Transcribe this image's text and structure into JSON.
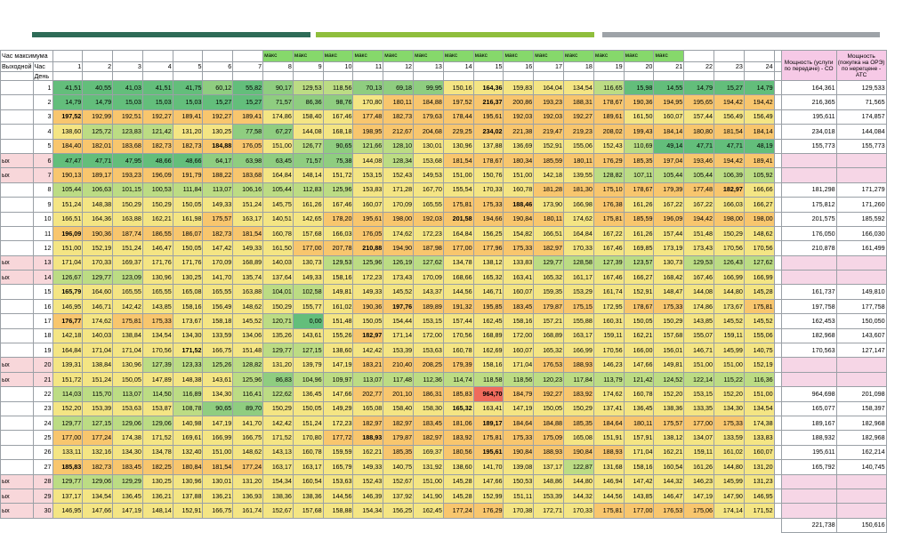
{
  "header": {
    "title": "Час максимума",
    "weekend_label": "Выходной",
    "hour_label": "Час",
    "day_label": "День",
    "maks_label": "макс",
    "maks_hours": [
      8,
      9,
      10,
      11,
      12,
      13,
      14,
      15,
      16,
      17,
      18,
      19,
      20,
      21
    ],
    "hours": [
      1,
      2,
      3,
      4,
      5,
      6,
      7,
      8,
      9,
      10,
      11,
      12,
      13,
      14,
      15,
      16,
      17,
      18,
      19,
      20,
      21,
      22,
      23,
      24
    ],
    "col_co": "Мощность (услуги по передаче) - СО",
    "col_ats": "Мощность (покупка на ОРЭ) по нерегцене - АТС"
  },
  "row_side_text": "ых",
  "rows": [
    {
      "day": "1",
      "wk": false,
      "v": [
        "41,51",
        "40,55",
        "41,03",
        "41,51",
        "41,75",
        "60,12",
        "55,82",
        "90,17",
        "129,53",
        "118,56",
        "70,13",
        "69,18",
        "99,95",
        "150,16",
        "164,36",
        "159,83",
        "164,04",
        "134,54",
        "116,65",
        "15,98",
        "14,55",
        "14,79",
        "15,27",
        "14,79"
      ],
      "co": "164,361",
      "ats": "129,533"
    },
    {
      "day": "2",
      "wk": false,
      "v": [
        "14,79",
        "14,79",
        "15,03",
        "15,03",
        "15,03",
        "15,27",
        "15,27",
        "71,57",
        "86,36",
        "98,76",
        "170,80",
        "180,11",
        "184,88",
        "197,52",
        "216,37",
        "200,86",
        "193,23",
        "188,31",
        "178,67",
        "190,36",
        "194,95",
        "195,65",
        "194,42",
        "194,42"
      ],
      "co": "216,365",
      "ats": "71,565"
    },
    {
      "day": "3",
      "wk": false,
      "v": [
        "197,52",
        "192,99",
        "192,51",
        "192,27",
        "189,41",
        "192,27",
        "189,41",
        "174,86",
        "158,40",
        "167,46",
        "177,48",
        "182,73",
        "179,63",
        "178,44",
        "195,61",
        "192,03",
        "192,03",
        "192,27",
        "189,61",
        "161,50",
        "160,07",
        "157,44",
        "156,49",
        "156,49"
      ],
      "co": "195,611",
      "ats": "174,857"
    },
    {
      "day": "4",
      "wk": false,
      "v": [
        "138,60",
        "125,72",
        "123,83",
        "121,42",
        "131,20",
        "130,25",
        "77,58",
        "67,27",
        "144,08",
        "168,18",
        "198,95",
        "212,67",
        "204,68",
        "229,25",
        "234,02",
        "221,38",
        "219,47",
        "219,23",
        "208,02",
        "199,43",
        "184,14",
        "180,80",
        "181,54",
        "184,14"
      ],
      "co": "234,018",
      "ats": "144,084"
    },
    {
      "day": "5",
      "wk": false,
      "v": [
        "184,40",
        "182,01",
        "183,68",
        "182,73",
        "182,73",
        "184,88",
        "176,05",
        "151,00",
        "126,77",
        "90,65",
        "121,66",
        "128,10",
        "130,01",
        "130,96",
        "137,88",
        "136,69",
        "152,91",
        "155,06",
        "152,43",
        "110,69",
        "49,14",
        "47,71",
        "47,71",
        "48,19"
      ],
      "co": "155,773",
      "ats": "155,773"
    },
    {
      "day": "6",
      "wk": true,
      "v": [
        "47,47",
        "47,71",
        "47,95",
        "48,66",
        "48,66",
        "64,17",
        "63,98",
        "63,45",
        "71,57",
        "75,38",
        "144,08",
        "128,34",
        "153,68",
        "181,54",
        "178,67",
        "180,34",
        "185,59",
        "180,11",
        "176,29",
        "185,35",
        "197,04",
        "193,46",
        "194,42",
        "189,41"
      ],
      "co": "",
      "ats": ""
    },
    {
      "day": "7",
      "wk": true,
      "v": [
        "190,13",
        "189,17",
        "193,23",
        "196,09",
        "191,79",
        "188,22",
        "183,68",
        "164,84",
        "148,14",
        "151,72",
        "153,15",
        "152,43",
        "149,53",
        "151,00",
        "150,76",
        "151,00",
        "142,18",
        "139,55",
        "128,82",
        "107,11",
        "105,44",
        "105,44",
        "106,39",
        "105,92"
      ],
      "co": "",
      "ats": ""
    },
    {
      "day": "8",
      "wk": false,
      "v": [
        "105,44",
        "106,63",
        "101,15",
        "100,53",
        "111,84",
        "113,07",
        "106,16",
        "105,44",
        "112,83",
        "125,96",
        "153,83",
        "171,28",
        "167,70",
        "155,54",
        "170,33",
        "160,78",
        "181,28",
        "181,30",
        "175,10",
        "178,67",
        "179,39",
        "177,48",
        "182,97",
        "166,66"
      ],
      "co": "181,298",
      "ats": "171,279"
    },
    {
      "day": "9",
      "wk": false,
      "v": [
        "151,24",
        "148,38",
        "150,29",
        "150,29",
        "150,05",
        "149,33",
        "151,24",
        "145,75",
        "161,26",
        "167,46",
        "160,07",
        "170,09",
        "165,55",
        "175,81",
        "175,33",
        "188,46",
        "173,90",
        "166,98",
        "176,38",
        "161,26",
        "167,22",
        "167,22",
        "166,03",
        "166,27"
      ],
      "co": "175,812",
      "ats": "171,260"
    },
    {
      "day": "10",
      "wk": false,
      "v": [
        "166,51",
        "164,36",
        "163,88",
        "162,21",
        "161,98",
        "175,57",
        "163,17",
        "140,51",
        "142,65",
        "178,20",
        "195,61",
        "198,00",
        "192,03",
        "201,58",
        "194,66",
        "190,84",
        "180,11",
        "174,62",
        "175,81",
        "185,59",
        "196,09",
        "194,42",
        "198,00",
        "198,00"
      ],
      "co": "201,575",
      "ats": "185,592"
    },
    {
      "day": "11",
      "wk": false,
      "v": [
        "196,09",
        "190,36",
        "187,74",
        "186,55",
        "186,07",
        "182,73",
        "181,54",
        "160,78",
        "157,68",
        "166,03",
        "176,05",
        "174,62",
        "172,23",
        "164,84",
        "156,25",
        "154,82",
        "166,51",
        "164,84",
        "167,22",
        "161,26",
        "157,44",
        "151,48",
        "150,29",
        "148,62"
      ],
      "co": "176,050",
      "ats": "166,030"
    },
    {
      "day": "12",
      "wk": false,
      "v": [
        "151,00",
        "152,19",
        "151,24",
        "146,47",
        "150,05",
        "147,42",
        "149,33",
        "161,50",
        "177,00",
        "207,78",
        "210,88",
        "194,90",
        "187,98",
        "177,00",
        "177,96",
        "175,33",
        "182,97",
        "170,33",
        "167,46",
        "169,85",
        "173,19",
        "173,43",
        "170,56",
        "170,56"
      ],
      "co": "210,878",
      "ats": "161,499"
    },
    {
      "day": "13",
      "wk": true,
      "v": [
        "171,04",
        "170,33",
        "169,37",
        "171,76",
        "171,76",
        "170,09",
        "168,89",
        "140,03",
        "130,73",
        "129,53",
        "125,96",
        "126,19",
        "127,62",
        "134,78",
        "138,12",
        "133,83",
        "129,77",
        "128,58",
        "127,39",
        "123,57",
        "130,73",
        "129,53",
        "126,43",
        "127,62"
      ],
      "co": "",
      "ats": ""
    },
    {
      "day": "14",
      "wk": true,
      "v": [
        "126,67",
        "129,77",
        "123,09",
        "130,96",
        "130,25",
        "141,70",
        "135,74",
        "137,64",
        "149,33",
        "158,16",
        "172,23",
        "173,43",
        "170,09",
        "168,66",
        "165,32",
        "163,41",
        "165,32",
        "161,17",
        "167,46",
        "166,27",
        "168,42",
        "167,46",
        "166,99",
        "166,99"
      ],
      "co": "",
      "ats": ""
    },
    {
      "day": "15",
      "wk": false,
      "v": [
        "165,79",
        "164,60",
        "165,55",
        "165,55",
        "165,08",
        "165,55",
        "163,88",
        "104,01",
        "102,58",
        "149,81",
        "149,33",
        "145,52",
        "143,37",
        "144,56",
        "146,71",
        "160,07",
        "159,35",
        "153,29",
        "161,74",
        "152,91",
        "148,47",
        "144,08",
        "144,80",
        "145,28"
      ],
      "co": "161,737",
      "ats": "149,810"
    },
    {
      "day": "16",
      "wk": false,
      "v": [
        "146,95",
        "146,71",
        "142,42",
        "143,85",
        "158,16",
        "156,49",
        "148,62",
        "150,29",
        "155,77",
        "161,02",
        "190,36",
        "197,76",
        "189,89",
        "191,32",
        "195,85",
        "183,45",
        "179,87",
        "175,15",
        "172,95",
        "178,67",
        "175,33",
        "174,86",
        "173,67",
        "175,81"
      ],
      "co": "197,758",
      "ats": "177,758"
    },
    {
      "day": "17",
      "wk": false,
      "v": [
        "176,77",
        "174,62",
        "175,81",
        "175,33",
        "173,67",
        "158,18",
        "145,52",
        "120,71",
        "0,00",
        "151,48",
        "150,05",
        "154,44",
        "153,15",
        "157,44",
        "162,45",
        "158,16",
        "157,21",
        "155,88",
        "160,31",
        "150,05",
        "150,29",
        "143,85",
        "145,52",
        "145,52"
      ],
      "co": "162,453",
      "ats": "150,050"
    },
    {
      "day": "18",
      "wk": false,
      "v": [
        "142,18",
        "140,03",
        "138,84",
        "134,54",
        "134,30",
        "133,59",
        "134,06",
        "135,26",
        "143,61",
        "155,26",
        "182,97",
        "171,14",
        "172,00",
        "170,56",
        "168,89",
        "172,00",
        "168,89",
        "163,17",
        "159,11",
        "162,21",
        "157,68",
        "155,07",
        "159,11",
        "155,06"
      ],
      "co": "182,968",
      "ats": "143,607"
    },
    {
      "day": "19",
      "wk": false,
      "v": [
        "164,84",
        "171,04",
        "171,04",
        "170,56",
        "171,52",
        "166,75",
        "151,48",
        "129,77",
        "127,15",
        "138,60",
        "142,42",
        "153,39",
        "153,63",
        "160,78",
        "162,69",
        "160,07",
        "165,32",
        "166,99",
        "170,56",
        "166,00",
        "156,01",
        "146,71",
        "145,99",
        "140,75"
      ],
      "co": "170,563",
      "ats": "127,147"
    },
    {
      "day": "20",
      "wk": true,
      "v": [
        "139,31",
        "138,84",
        "130,96",
        "127,39",
        "123,33",
        "125,26",
        "128,82",
        "131,20",
        "139,79",
        "147,19",
        "183,21",
        "210,40",
        "208,25",
        "179,39",
        "158,16",
        "171,04",
        "176,53",
        "188,93",
        "146,23",
        "147,66",
        "149,81",
        "151,00",
        "151,00",
        "152,19"
      ],
      "co": "",
      "ats": ""
    },
    {
      "day": "21",
      "wk": true,
      "v": [
        "151,72",
        "151,24",
        "150,05",
        "147,89",
        "148,38",
        "143,61",
        "125,96",
        "86,83",
        "104,96",
        "109,97",
        "113,07",
        "117,48",
        "112,36",
        "114,74",
        "118,58",
        "118,56",
        "120,23",
        "117,84",
        "113,79",
        "121,42",
        "124,52",
        "122,14",
        "115,22",
        "116,36"
      ],
      "co": "",
      "ats": ""
    },
    {
      "day": "22",
      "wk": false,
      "v": [
        "114,03",
        "115,70",
        "113,07",
        "114,50",
        "116,89",
        "134,30",
        "116,41",
        "122,62",
        "136,45",
        "147,66",
        "202,77",
        "201,10",
        "186,31",
        "185,83",
        "964,70",
        "184,79",
        "192,27",
        "183,92",
        "174,62",
        "160,78",
        "152,20",
        "153,15",
        "152,20",
        "151,00"
      ],
      "co": "964,698",
      "ats": "201,098"
    },
    {
      "day": "23",
      "wk": false,
      "v": [
        "152,20",
        "153,39",
        "153,63",
        "153,87",
        "108,78",
        "90,65",
        "89,70",
        "150,29",
        "150,05",
        "149,29",
        "165,08",
        "158,40",
        "158,30",
        "165,32",
        "163,41",
        "147,19",
        "150,05",
        "150,29",
        "137,41",
        "136,45",
        "138,36",
        "133,35",
        "134,30",
        "134,54"
      ],
      "co": "165,077",
      "ats": "158,397"
    },
    {
      "day": "24",
      "wk": false,
      "v": [
        "129,77",
        "127,15",
        "129,06",
        "129,06",
        "140,98",
        "147,19",
        "141,70",
        "142,42",
        "151,24",
        "172,23",
        "182,97",
        "182,97",
        "183,45",
        "181,06",
        "189,17",
        "184,64",
        "184,88",
        "185,35",
        "184,64",
        "180,11",
        "175,57",
        "177,00",
        "175,33",
        "174,38"
      ],
      "co": "189,167",
      "ats": "182,968"
    },
    {
      "day": "25",
      "wk": false,
      "v": [
        "177,00",
        "177,24",
        "174,38",
        "171,52",
        "169,61",
        "166,99",
        "166,75",
        "171,52",
        "170,80",
        "177,72",
        "188,93",
        "179,87",
        "182,97",
        "183,92",
        "175,81",
        "175,33",
        "175,09",
        "165,08",
        "151,91",
        "157,91",
        "138,12",
        "134,07",
        "133,59",
        "133,83"
      ],
      "co": "188,932",
      "ats": "182,968"
    },
    {
      "day": "26",
      "wk": false,
      "v": [
        "133,11",
        "132,16",
        "134,30",
        "134,78",
        "132,40",
        "151,00",
        "148,62",
        "143,13",
        "160,78",
        "159,59",
        "162,21",
        "185,35",
        "169,37",
        "180,56",
        "195,61",
        "190,84",
        "188,93",
        "190,84",
        "188,93",
        "171,04",
        "162,21",
        "159,11",
        "161,02",
        "160,07"
      ],
      "co": "195,611",
      "ats": "162,214"
    },
    {
      "day": "27",
      "wk": false,
      "v": [
        "185,83",
        "182,73",
        "183,45",
        "182,25",
        "180,84",
        "181,54",
        "177,24",
        "163,17",
        "163,17",
        "165,79",
        "149,33",
        "140,75",
        "131,92",
        "138,60",
        "141,70",
        "139,08",
        "137,17",
        "122,87",
        "131,68",
        "158,16",
        "160,54",
        "161,26",
        "144,80",
        "131,20"
      ],
      "co": "165,792",
      "ats": "140,745"
    },
    {
      "day": "28",
      "wk": true,
      "v": [
        "129,77",
        "129,06",
        "129,29",
        "130,25",
        "130,96",
        "130,01",
        "131,20",
        "154,34",
        "160,54",
        "153,63",
        "152,43",
        "152,67",
        "151,00",
        "145,28",
        "147,66",
        "150,53",
        "148,86",
        "144,80",
        "146,94",
        "147,42",
        "144,32",
        "146,23",
        "145,99",
        "131,23"
      ],
      "co": "",
      "ats": ""
    },
    {
      "day": "29",
      "wk": true,
      "v": [
        "137,17",
        "134,54",
        "136,45",
        "136,21",
        "137,88",
        "136,21",
        "136,93",
        "138,36",
        "138,36",
        "144,56",
        "146,39",
        "137,92",
        "141,90",
        "145,28",
        "152,99",
        "151,11",
        "153,39",
        "144,32",
        "144,56",
        "143,85",
        "146,47",
        "147,19",
        "147,90",
        "146,95"
      ],
      "co": "",
      "ats": ""
    },
    {
      "day": "30",
      "wk": true,
      "v": [
        "146,95",
        "147,66",
        "147,19",
        "148,14",
        "152,91",
        "166,75",
        "161,74",
        "152,67",
        "157,68",
        "158,88",
        "154,34",
        "156,25",
        "162,45",
        "177,24",
        "176,29",
        "170,38",
        "172,71",
        "170,33",
        "175,81",
        "177,00",
        "176,53",
        "175,06",
        "174,14",
        "171,52"
      ],
      "co": "",
      "ats": ""
    }
  ],
  "totals": {
    "co": "221,738",
    "ats": "150,616"
  },
  "colors": {
    "bar1": "#2e6b57",
    "bar2": "#8fbe3c",
    "bar3": "#9ea3a8",
    "maks_green": "#86d86b",
    "pink": "#f6c9e6"
  }
}
